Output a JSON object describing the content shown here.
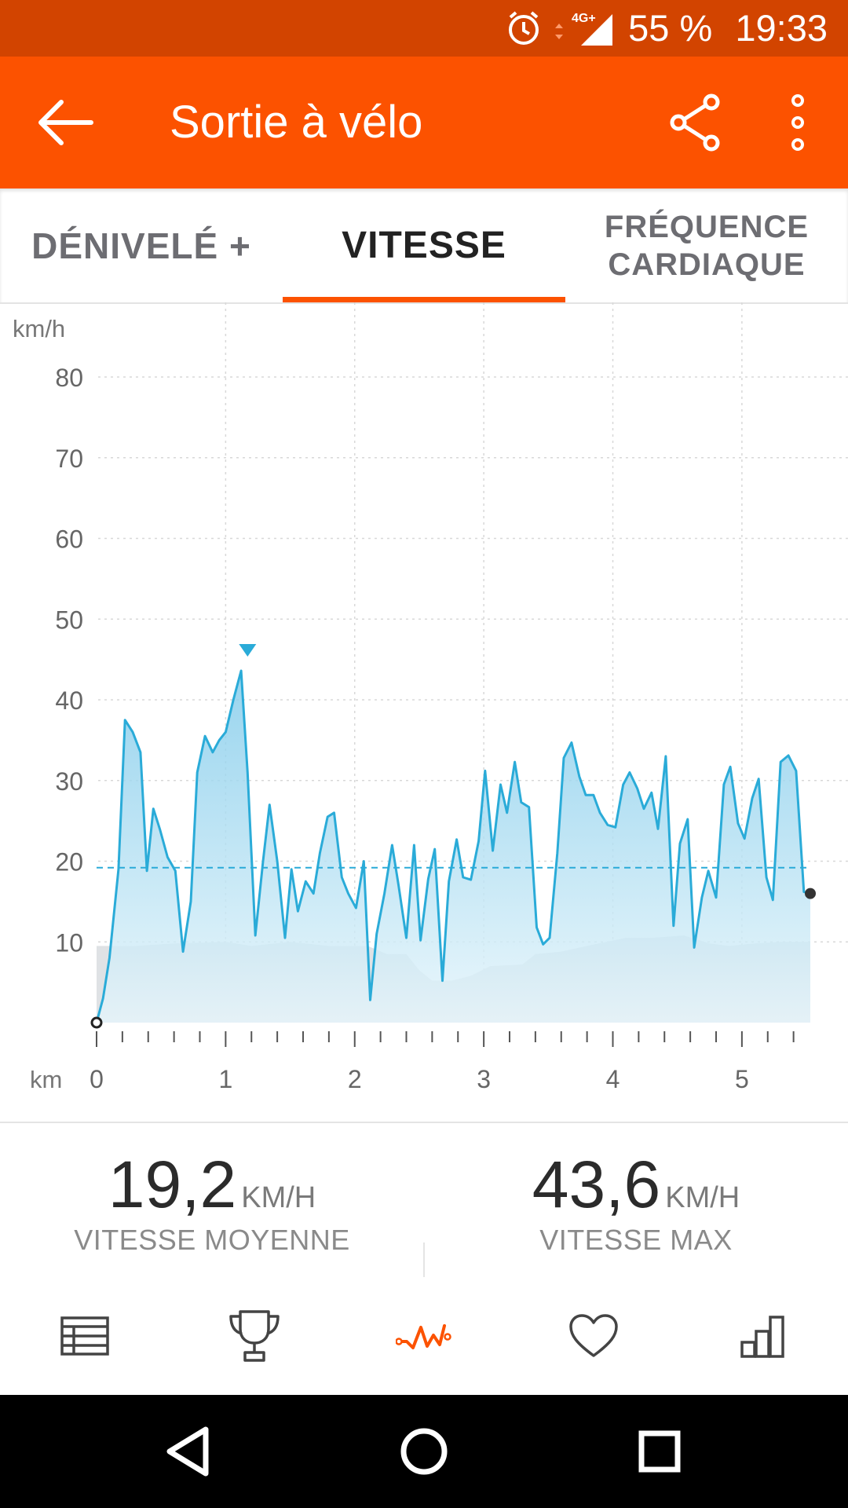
{
  "status_bar": {
    "network": "4G+",
    "battery": "55 %",
    "time": "19:33",
    "icons": [
      "alarm-icon",
      "network-arrows-icon",
      "signal-icon"
    ]
  },
  "app_bar": {
    "title": "Sortie à vélo",
    "icons": [
      "back-arrow-icon",
      "share-icon",
      "more-vert-icon"
    ],
    "background": "#fc5200"
  },
  "tabs": [
    {
      "label": "DÉNIVELÉ +",
      "selected": false
    },
    {
      "label": "VITESSE",
      "selected": true
    },
    {
      "label": "FRÉQUENCE CARDIAQUE",
      "label_line1": "FRÉQUENCE",
      "label_line2": "CARDIAQUE",
      "selected": false
    }
  ],
  "chart_data": {
    "type": "area",
    "ylabel": "km/h",
    "xlabel": "km",
    "ylim": [
      0,
      80
    ],
    "yticks": [
      10,
      20,
      30,
      40,
      50,
      60,
      70,
      80
    ],
    "xlim": [
      0,
      5.53
    ],
    "xticks": [
      0,
      1,
      2,
      3,
      4,
      5
    ],
    "grid": true,
    "average_line": 19.2,
    "max_marker": {
      "x": 1.17,
      "y": 43.6
    },
    "colors": {
      "line": "#2aabd8",
      "fill_top": "#7fcaea",
      "fill_bottom": "#e6f5fb",
      "elevation": "#dfe2e5",
      "average": "#2aabd8"
    },
    "series": [
      {
        "x": [
          0,
          0.05,
          0.1,
          0.17,
          0.22,
          0.28,
          0.34,
          0.39,
          0.44,
          0.49,
          0.55,
          0.61,
          0.67,
          0.73,
          0.78,
          0.84,
          0.9,
          0.95,
          1.0,
          1.06,
          1.12,
          1.17,
          1.23,
          1.29,
          1.34,
          1.4,
          1.46,
          1.51,
          1.56,
          1.62,
          1.68,
          1.73,
          1.79,
          1.84,
          1.9,
          1.95,
          2.01,
          2.07,
          2.12,
          2.17,
          2.23,
          2.29,
          2.34,
          2.4,
          2.46,
          2.51,
          2.57,
          2.62,
          2.68,
          2.73,
          2.79,
          2.84,
          2.9,
          2.96,
          3.01,
          3.07,
          3.13,
          3.18,
          3.24,
          3.29,
          3.35,
          3.41,
          3.46,
          3.51,
          3.57,
          3.62,
          3.68,
          3.74,
          3.79,
          3.85,
          3.9,
          3.96,
          4.02,
          4.08,
          4.13,
          4.19,
          4.24,
          4.3,
          4.35,
          4.41,
          4.47,
          4.52,
          4.58,
          4.63,
          4.69,
          4.74,
          4.8,
          4.86,
          4.91,
          4.97,
          5.02,
          5.08,
          5.13,
          5.19,
          5.24,
          5.3,
          5.36,
          5.42,
          5.48,
          5.53
        ],
        "values": [
          0,
          3,
          8,
          19,
          37.5,
          36,
          33.5,
          18.8,
          26.5,
          24,
          20.5,
          18.8,
          8.8,
          15,
          31,
          35.5,
          33.5,
          35,
          36,
          40,
          43.6,
          31,
          10.8,
          20,
          27,
          20,
          10.5,
          19,
          13.8,
          17.5,
          16,
          21,
          25.5,
          26,
          18,
          16,
          14.2,
          20,
          2.8,
          11,
          16,
          22,
          17,
          10.5,
          22,
          10.2,
          17.8,
          21.5,
          5.2,
          17.5,
          22.7,
          18,
          17.7,
          22.5,
          31.2,
          21.3,
          29.5,
          26,
          32.3,
          27.3,
          26.7,
          11.8,
          9.7,
          10.5,
          21,
          32.8,
          34.7,
          30.5,
          28.2,
          28.2,
          26,
          24.5,
          24.2,
          29.5,
          31,
          29,
          26.5,
          28.5,
          24,
          33,
          12,
          22.2,
          25.2,
          9.3,
          15.5,
          18.8,
          15.5,
          29.5,
          31.7,
          24.7,
          22.8,
          27.8,
          30.2,
          18,
          15.2,
          32.3,
          33.1,
          31.2,
          16.2,
          16
        ]
      }
    ]
  },
  "stats": [
    {
      "value": "19,2",
      "unit": "KM/H",
      "label": "VITESSE MOYENNE"
    },
    {
      "value": "43,6",
      "unit": "KM/H",
      "label": "VITESSE MAX"
    }
  ],
  "bottom_nav": [
    {
      "icon": "table-icon",
      "active": false
    },
    {
      "icon": "trophy-icon",
      "active": false
    },
    {
      "icon": "analysis-line-icon",
      "active": true
    },
    {
      "icon": "heart-icon",
      "active": false
    },
    {
      "icon": "bar-chart-icon",
      "active": false
    }
  ],
  "system_nav": [
    "back-triangle-icon",
    "home-circle-icon",
    "recents-square-icon"
  ]
}
